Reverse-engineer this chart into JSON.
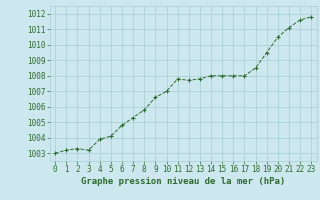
{
  "x": [
    0,
    1,
    2,
    3,
    4,
    5,
    6,
    7,
    8,
    9,
    10,
    11,
    12,
    13,
    14,
    15,
    16,
    17,
    18,
    19,
    20,
    21,
    22,
    23
  ],
  "y": [
    1003.0,
    1003.2,
    1003.3,
    1003.2,
    1003.9,
    1004.1,
    1004.8,
    1005.3,
    1005.8,
    1006.6,
    1007.0,
    1007.8,
    1007.7,
    1007.8,
    1008.0,
    1008.0,
    1008.0,
    1008.0,
    1008.5,
    1009.5,
    1010.5,
    1011.1,
    1011.6,
    1011.8
  ],
  "line_color": "#2d6a2d",
  "marker_color": "#2d6a2d",
  "bg_color": "#cce8ee",
  "grid_color": "#a8cdd4",
  "xlabel": "Graphe pression niveau de la mer (hPa)",
  "xlabel_color": "#2d6a2d",
  "tick_color": "#2d6a2d",
  "ylim": [
    1002.5,
    1012.5
  ],
  "yticks": [
    1003,
    1004,
    1005,
    1006,
    1007,
    1008,
    1009,
    1010,
    1011,
    1012
  ],
  "xlim": [
    -0.5,
    23.5
  ],
  "xticks": [
    0,
    1,
    2,
    3,
    4,
    5,
    6,
    7,
    8,
    9,
    10,
    11,
    12,
    13,
    14,
    15,
    16,
    17,
    18,
    19,
    20,
    21,
    22,
    23
  ],
  "xlabel_fontsize": 6.5,
  "tick_fontsize": 5.5
}
